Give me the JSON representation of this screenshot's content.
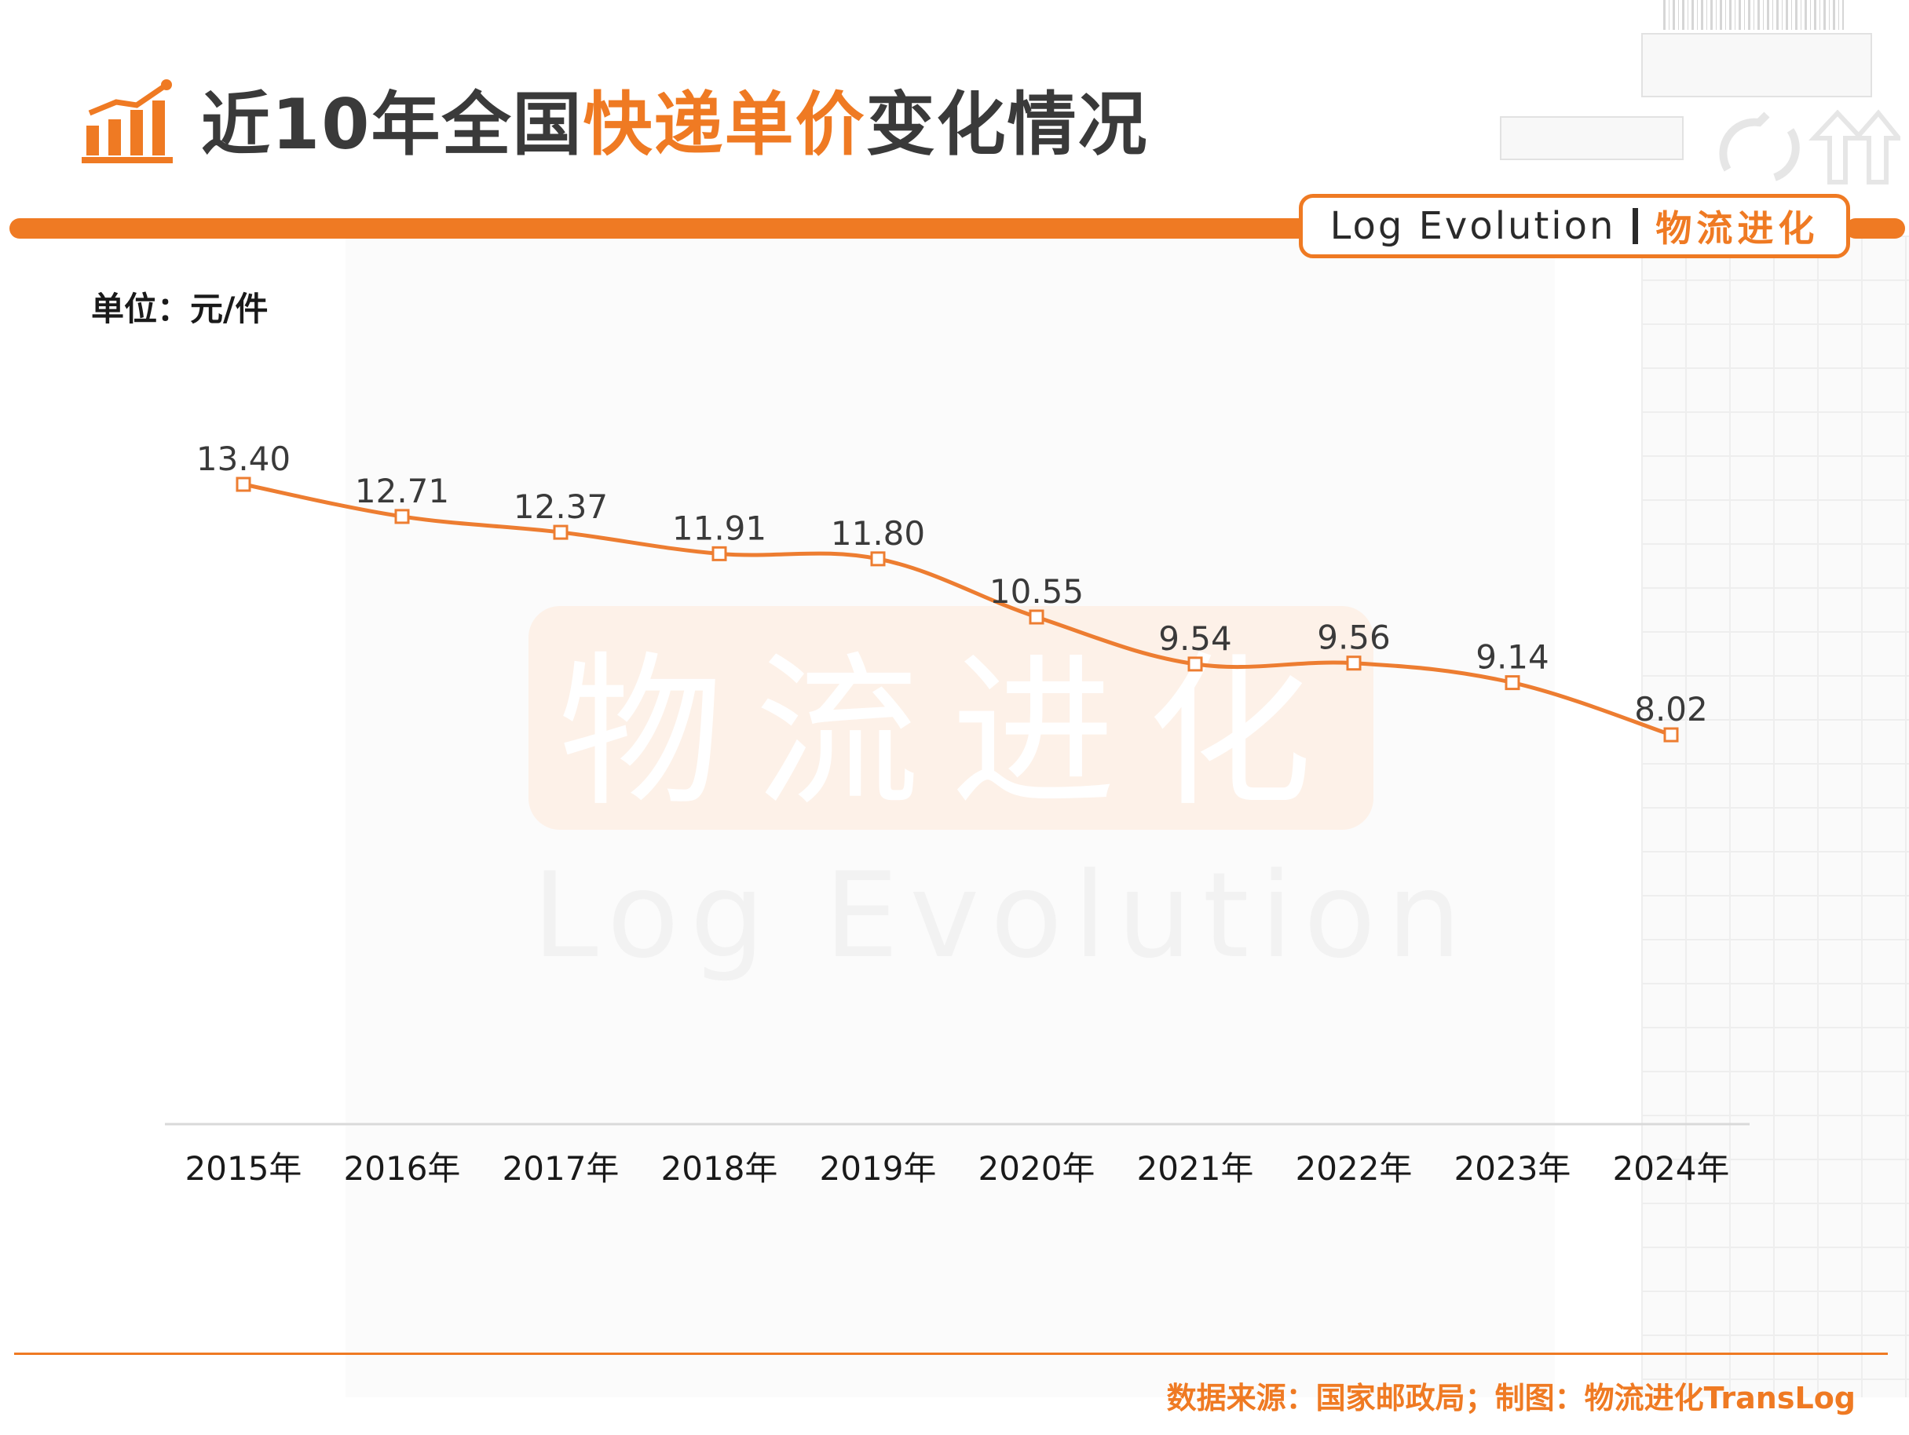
{
  "header": {
    "title_part1": "近10年全国",
    "title_highlight": "快递单价",
    "title_part2": "变化情况",
    "badge_en": "Log Evolution",
    "badge_cn": "物流进化"
  },
  "watermark": {
    "cn": "物流进化",
    "en": "Log Evolution"
  },
  "unit_label": "单位：元/件",
  "source": "数据来源：国家邮政局；制图：物流进化TransLog",
  "colors": {
    "accent": "#ef7a23",
    "line": "#ed7d31",
    "text": "#3a3a3a"
  },
  "chart_data": {
    "type": "line",
    "title": "近10年全国快递单价变化情况",
    "ylabel": "单位：元/件",
    "xlabel": "",
    "categories": [
      "2015年",
      "2016年",
      "2017年",
      "2018年",
      "2019年",
      "2020年",
      "2021年",
      "2022年",
      "2023年",
      "2024年"
    ],
    "series": [
      {
        "values": [
          13.4,
          12.71,
          12.37,
          11.91,
          11.8,
          10.55,
          9.54,
          9.56,
          9.14,
          8.02
        ]
      }
    ],
    "data_labels": [
      "13.40",
      "12.71",
      "12.37",
      "11.91",
      "11.80",
      "10.55",
      "9.54",
      "9.56",
      "9.14",
      "8.02"
    ],
    "grid": false,
    "legend": "none"
  }
}
